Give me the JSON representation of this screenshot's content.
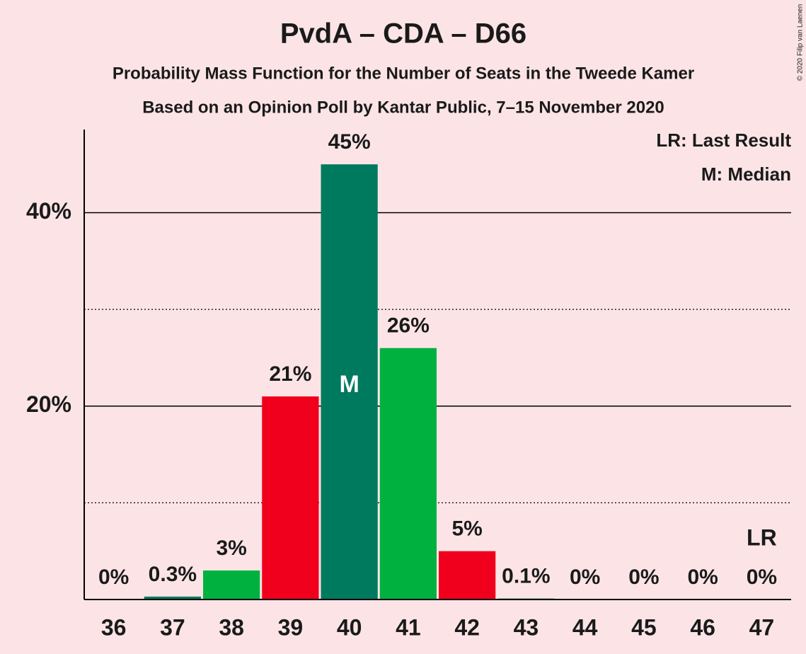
{
  "chart_data": {
    "type": "bar",
    "title": "PvdA – CDA – D66",
    "subtitle": "Probability Mass Function for the Number of Seats in the Tweede Kamer",
    "subtitle2": "Based on an Opinion Poll by Kantar Public, 7–15 November 2020",
    "copyright": "© 2020 Filip van Laenen",
    "legend": [
      "LR: Last Result",
      "M: Median"
    ],
    "legend_position": "top-right",
    "categories": [
      "36",
      "37",
      "38",
      "39",
      "40",
      "41",
      "42",
      "43",
      "44",
      "45",
      "46",
      "47"
    ],
    "values": [
      0,
      0.3,
      3,
      21,
      45,
      26,
      5,
      0.1,
      0,
      0,
      0,
      0
    ],
    "value_labels": [
      "0%",
      "0.3%",
      "3%",
      "21%",
      "45%",
      "26%",
      "5%",
      "0.1%",
      "0%",
      "0%",
      "0%",
      "0%"
    ],
    "colors": [
      "#007a5e",
      "#007a5e",
      "#00b140",
      "#f0001c",
      "#007a5e",
      "#00b140",
      "#f0001c",
      "#007a5e",
      "#00b140",
      "#f0001c",
      "#007a5e",
      "#00b140"
    ],
    "median": "40",
    "median_label": "M",
    "last_result": "47",
    "last_result_label": "LR",
    "ylim": [
      0,
      48.6
    ],
    "yticks": [
      {
        "value": 20,
        "label": "20%"
      },
      {
        "value": 40,
        "label": "40%"
      }
    ],
    "minor_yticks": [
      10,
      30
    ],
    "grid": true
  }
}
